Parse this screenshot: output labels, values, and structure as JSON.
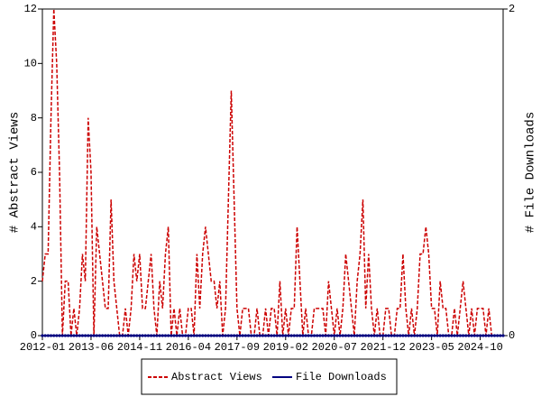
{
  "chart_data": {
    "type": "line",
    "x": [
      "2012-01",
      "2012-02",
      "2012-03",
      "2012-04",
      "2012-05",
      "2012-06",
      "2012-07",
      "2012-08",
      "2012-09",
      "2012-10",
      "2012-11",
      "2012-12",
      "2013-01",
      "2013-02",
      "2013-03",
      "2013-04",
      "2013-05",
      "2013-06",
      "2013-07",
      "2013-08",
      "2013-09",
      "2013-10",
      "2013-11",
      "2013-12",
      "2014-01",
      "2014-02",
      "2014-03",
      "2014-04",
      "2014-05",
      "2014-06",
      "2014-07",
      "2014-08",
      "2014-09",
      "2014-10",
      "2014-11",
      "2014-12",
      "2015-01",
      "2015-02",
      "2015-03",
      "2015-04",
      "2015-05",
      "2015-06",
      "2015-07",
      "2015-08",
      "2015-09",
      "2015-10",
      "2015-11",
      "2015-12",
      "2016-01",
      "2016-02",
      "2016-03",
      "2016-04",
      "2016-05",
      "2016-06",
      "2016-07",
      "2016-08",
      "2016-09",
      "2016-10",
      "2016-11",
      "2016-12",
      "2017-01",
      "2017-02",
      "2017-03",
      "2017-04",
      "2017-05",
      "2017-06",
      "2017-07",
      "2017-08",
      "2017-09",
      "2017-10",
      "2017-11",
      "2017-12",
      "2018-01",
      "2018-02",
      "2018-03",
      "2018-04",
      "2018-05",
      "2018-06",
      "2018-07",
      "2018-08",
      "2018-09",
      "2018-10",
      "2018-11",
      "2018-12",
      "2019-01",
      "2019-02",
      "2019-03",
      "2019-04",
      "2019-05",
      "2019-06",
      "2019-07",
      "2019-08",
      "2019-09",
      "2019-10",
      "2019-11",
      "2019-12",
      "2020-01",
      "2020-02",
      "2020-03",
      "2020-04",
      "2020-05",
      "2020-06",
      "2020-07",
      "2020-08",
      "2020-09",
      "2020-10",
      "2020-11",
      "2020-12",
      "2021-01",
      "2021-02",
      "2021-03",
      "2021-04",
      "2021-05",
      "2021-06",
      "2021-07",
      "2021-08",
      "2021-09",
      "2021-10",
      "2021-11",
      "2021-12",
      "2022-01",
      "2022-02",
      "2022-03",
      "2022-04",
      "2022-05",
      "2022-06",
      "2022-07",
      "2022-08",
      "2022-09",
      "2022-10",
      "2022-11",
      "2022-12",
      "2023-01",
      "2023-02",
      "2023-03",
      "2023-04",
      "2023-05",
      "2023-06",
      "2023-07",
      "2023-08",
      "2023-09",
      "2023-10",
      "2023-11",
      "2023-12",
      "2024-01",
      "2024-02",
      "2024-03",
      "2024-04",
      "2024-05",
      "2024-06",
      "2024-07",
      "2024-08",
      "2024-09",
      "2024-10",
      "2024-11",
      "2024-12",
      "2025-01",
      "2025-02",
      "2025-03",
      "2025-04",
      "2025-05",
      "2025-06"
    ],
    "xticks": [
      "2012-01",
      "2013-06",
      "2014-11",
      "2016-04",
      "2017-09",
      "2019-02",
      "2020-07",
      "2021-12",
      "2023-05",
      "2024-10"
    ],
    "y_label": "# Abstract Views",
    "y2_label": "# File Downloads",
    "ylim": [
      0,
      12
    ],
    "yticks": [
      0,
      2,
      4,
      6,
      8,
      10,
      12
    ],
    "y2lim": [
      0,
      2
    ],
    "y2ticks": [
      0,
      2
    ],
    "series": [
      {
        "name": "Abstract Views",
        "color": "#cc0000",
        "dashed": true,
        "values": [
          2,
          3,
          3,
          8,
          12,
          10,
          6,
          0,
          2,
          2,
          0,
          1,
          0,
          1,
          3,
          2,
          8,
          6,
          0,
          4,
          3,
          2,
          1,
          1,
          5,
          2,
          1,
          0,
          0,
          1,
          0,
          1,
          3,
          2,
          3,
          1,
          1,
          2,
          3,
          1,
          0,
          2,
          1,
          3,
          4,
          0,
          1,
          0,
          1,
          0,
          0,
          1,
          1,
          0,
          3,
          1,
          3,
          4,
          3,
          2,
          2,
          1,
          2,
          0,
          1,
          5,
          9,
          5,
          1,
          0,
          1,
          1,
          1,
          0,
          0,
          1,
          0,
          0,
          1,
          0,
          1,
          1,
          0,
          2,
          0,
          1,
          0,
          1,
          1,
          4,
          2,
          0,
          1,
          0,
          0,
          1,
          1,
          1,
          1,
          0,
          2,
          1,
          0,
          1,
          0,
          1,
          3,
          2,
          1,
          0,
          2,
          3,
          5,
          1,
          3,
          1,
          0,
          1,
          0,
          0,
          1,
          1,
          0,
          0,
          1,
          1,
          3,
          1,
          0,
          1,
          0,
          1,
          3,
          3,
          4,
          3,
          1,
          1,
          0,
          2,
          1,
          1,
          0,
          0,
          1,
          0,
          1,
          2,
          1,
          0,
          1,
          0,
          1,
          1,
          1,
          0,
          1,
          0,
          0,
          0,
          0,
          0
        ]
      },
      {
        "name": "File Downloads",
        "color": "#000080",
        "axis": "y2",
        "markers": true,
        "values": [
          0,
          0,
          0,
          0,
          0,
          0,
          0,
          0,
          0,
          0,
          0,
          0,
          0,
          0,
          0,
          0,
          0,
          0,
          0,
          0,
          0,
          0,
          0,
          0,
          0,
          0,
          0,
          0,
          0,
          0,
          0,
          0,
          0,
          0,
          0,
          0,
          0,
          0,
          0,
          0,
          0,
          0,
          0,
          0,
          0,
          0,
          0,
          0,
          0,
          0,
          0,
          0,
          0,
          0,
          0,
          0,
          0,
          0,
          0,
          0,
          0,
          0,
          0,
          0,
          0,
          0,
          0,
          0,
          0,
          0,
          0,
          0,
          0,
          0,
          0,
          0,
          0,
          0,
          0,
          0,
          0,
          0,
          0,
          0,
          0,
          0,
          0,
          0,
          0,
          0,
          0,
          0,
          0,
          0,
          0,
          0,
          0,
          0,
          0,
          0,
          0,
          0,
          0,
          0,
          0,
          0,
          0,
          0,
          0,
          0,
          0,
          0,
          0,
          0,
          0,
          0,
          0,
          0,
          0,
          0,
          0,
          0,
          0,
          0,
          0,
          0,
          0,
          0,
          0,
          0,
          0,
          0,
          0,
          0,
          0,
          0,
          0,
          0,
          0,
          0,
          0,
          0,
          0,
          0,
          0,
          0,
          0,
          0,
          0,
          0,
          0,
          0,
          0,
          0,
          0,
          0,
          0,
          0,
          0,
          0,
          0,
          0
        ]
      }
    ]
  }
}
